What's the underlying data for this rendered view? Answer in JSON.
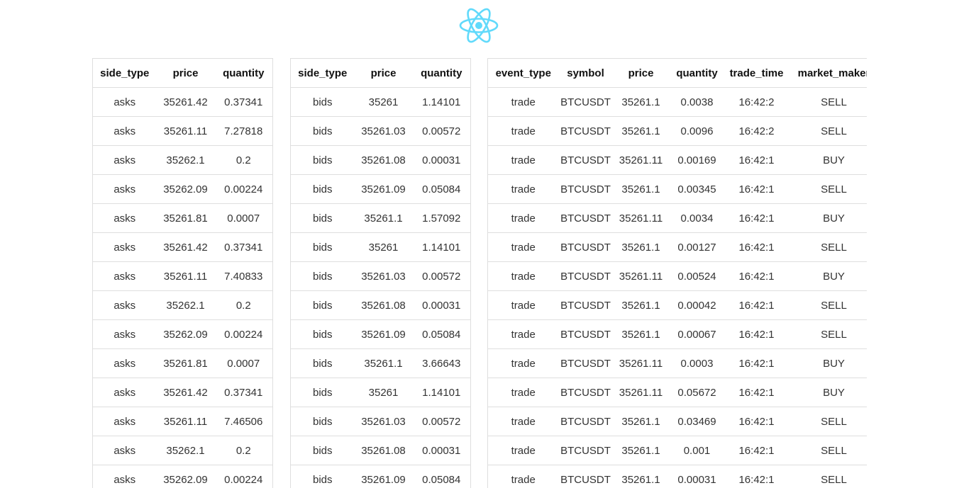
{
  "logo": {
    "icon": "react-logo-icon",
    "color": "#61dafb"
  },
  "asks_table": {
    "headers": [
      "side_type",
      "price",
      "quantity"
    ],
    "rows": [
      [
        "asks",
        "35261.42",
        "0.37341"
      ],
      [
        "asks",
        "35261.11",
        "7.27818"
      ],
      [
        "asks",
        "35262.1",
        "0.2"
      ],
      [
        "asks",
        "35262.09",
        "0.00224"
      ],
      [
        "asks",
        "35261.81",
        "0.0007"
      ],
      [
        "asks",
        "35261.42",
        "0.37341"
      ],
      [
        "asks",
        "35261.11",
        "7.40833"
      ],
      [
        "asks",
        "35262.1",
        "0.2"
      ],
      [
        "asks",
        "35262.09",
        "0.00224"
      ],
      [
        "asks",
        "35261.81",
        "0.0007"
      ],
      [
        "asks",
        "35261.42",
        "0.37341"
      ],
      [
        "asks",
        "35261.11",
        "7.46506"
      ],
      [
        "asks",
        "35262.1",
        "0.2"
      ],
      [
        "asks",
        "35262.09",
        "0.00224"
      ]
    ]
  },
  "bids_table": {
    "headers": [
      "side_type",
      "price",
      "quantity"
    ],
    "rows": [
      [
        "bids",
        "35261",
        "1.14101"
      ],
      [
        "bids",
        "35261.03",
        "0.00572"
      ],
      [
        "bids",
        "35261.08",
        "0.00031"
      ],
      [
        "bids",
        "35261.09",
        "0.05084"
      ],
      [
        "bids",
        "35261.1",
        "1.57092"
      ],
      [
        "bids",
        "35261",
        "1.14101"
      ],
      [
        "bids",
        "35261.03",
        "0.00572"
      ],
      [
        "bids",
        "35261.08",
        "0.00031"
      ],
      [
        "bids",
        "35261.09",
        "0.05084"
      ],
      [
        "bids",
        "35261.1",
        "3.66643"
      ],
      [
        "bids",
        "35261",
        "1.14101"
      ],
      [
        "bids",
        "35261.03",
        "0.00572"
      ],
      [
        "bids",
        "35261.08",
        "0.00031"
      ],
      [
        "bids",
        "35261.09",
        "0.05084"
      ]
    ]
  },
  "trades_table": {
    "headers": [
      "event_type",
      "symbol",
      "price",
      "quantity",
      "trade_time",
      "market_maker"
    ],
    "rows": [
      [
        "trade",
        "BTCUSDT",
        "35261.1",
        "0.0038",
        "16:42:2",
        "SELL"
      ],
      [
        "trade",
        "BTCUSDT",
        "35261.1",
        "0.0096",
        "16:42:2",
        "SELL"
      ],
      [
        "trade",
        "BTCUSDT",
        "35261.11",
        "0.00169",
        "16:42:1",
        "BUY"
      ],
      [
        "trade",
        "BTCUSDT",
        "35261.1",
        "0.00345",
        "16:42:1",
        "SELL"
      ],
      [
        "trade",
        "BTCUSDT",
        "35261.11",
        "0.0034",
        "16:42:1",
        "BUY"
      ],
      [
        "trade",
        "BTCUSDT",
        "35261.1",
        "0.00127",
        "16:42:1",
        "SELL"
      ],
      [
        "trade",
        "BTCUSDT",
        "35261.11",
        "0.00524",
        "16:42:1",
        "BUY"
      ],
      [
        "trade",
        "BTCUSDT",
        "35261.1",
        "0.00042",
        "16:42:1",
        "SELL"
      ],
      [
        "trade",
        "BTCUSDT",
        "35261.1",
        "0.00067",
        "16:42:1",
        "SELL"
      ],
      [
        "trade",
        "BTCUSDT",
        "35261.11",
        "0.0003",
        "16:42:1",
        "BUY"
      ],
      [
        "trade",
        "BTCUSDT",
        "35261.11",
        "0.05672",
        "16:42:1",
        "BUY"
      ],
      [
        "trade",
        "BTCUSDT",
        "35261.1",
        "0.03469",
        "16:42:1",
        "SELL"
      ],
      [
        "trade",
        "BTCUSDT",
        "35261.1",
        "0.001",
        "16:42:1",
        "SELL"
      ],
      [
        "trade",
        "BTCUSDT",
        "35261.1",
        "0.00031",
        "16:42:1",
        "SELL"
      ]
    ]
  }
}
